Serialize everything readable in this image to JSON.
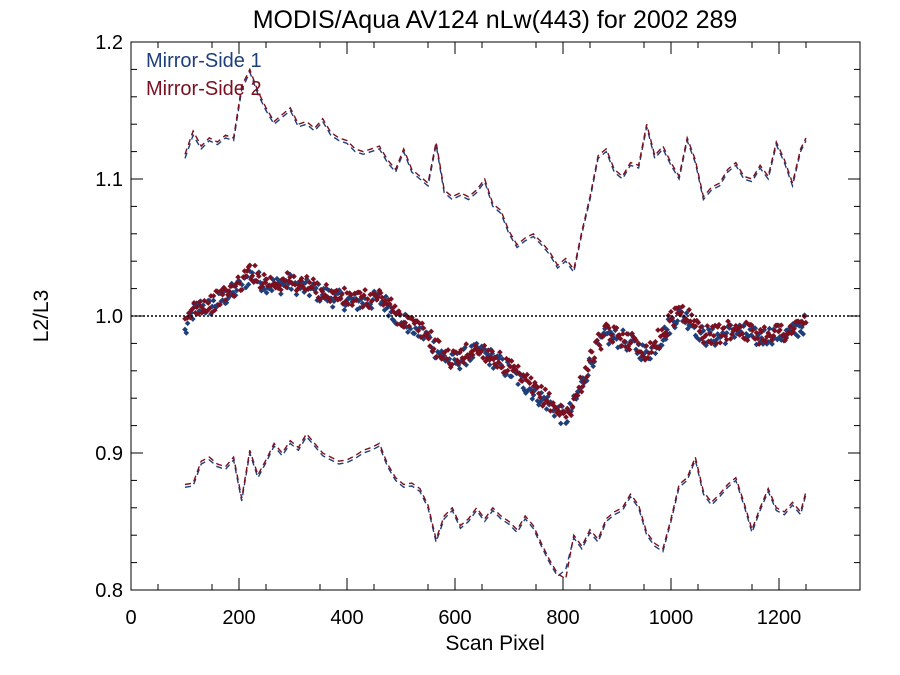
{
  "chart_data": {
    "type": "scatter",
    "title": "MODIS/Aqua AV124 nLw(443) for 2002 289",
    "xlabel": "Scan Pixel",
    "ylabel": "L2/L3",
    "xlim": [
      0,
      1350
    ],
    "ylim": [
      0.8,
      1.2
    ],
    "xticks": [
      0,
      200,
      400,
      600,
      800,
      1000,
      1200
    ],
    "xtick_labels": [
      "0",
      "200",
      "400",
      "600",
      "800",
      "1000",
      "1200"
    ],
    "yticks": [
      0.8,
      0.9,
      1.0,
      1.1,
      1.2
    ],
    "ytick_labels": [
      "0.8",
      "0.9",
      "1.0",
      "1.1",
      "1.2"
    ],
    "reference_line": {
      "y": 1.0,
      "style": "dotted"
    },
    "legend_position": "top-left",
    "colors": {
      "mirror_side_1": "#1f3f7a",
      "mirror_side_2": "#7a1020"
    },
    "series": [
      {
        "name": "Mirror-Side 1",
        "color": "#1f3f7a",
        "x": [
          100,
          115,
          130,
          145,
          160,
          175,
          190,
          205,
          220,
          235,
          250,
          265,
          280,
          295,
          310,
          325,
          340,
          355,
          370,
          385,
          400,
          415,
          430,
          445,
          460,
          475,
          490,
          505,
          520,
          535,
          550,
          565,
          580,
          595,
          610,
          625,
          640,
          655,
          670,
          685,
          700,
          715,
          730,
          745,
          760,
          775,
          790,
          805,
          820,
          835,
          850,
          865,
          880,
          895,
          910,
          925,
          940,
          955,
          970,
          985,
          1000,
          1015,
          1030,
          1045,
          1060,
          1075,
          1090,
          1105,
          1120,
          1135,
          1150,
          1165,
          1180,
          1195,
          1210,
          1225,
          1240,
          1250
        ],
        "mean": [
          0.988,
          1.003,
          1.007,
          1.006,
          1.01,
          1.014,
          1.018,
          1.022,
          1.03,
          1.026,
          1.024,
          1.022,
          1.023,
          1.024,
          1.022,
          1.02,
          1.018,
          1.016,
          1.014,
          1.012,
          1.011,
          1.01,
          1.01,
          1.011,
          1.012,
          1.008,
          1.0,
          0.996,
          0.992,
          0.988,
          0.984,
          0.975,
          0.97,
          0.966,
          0.968,
          0.972,
          0.973,
          0.972,
          0.969,
          0.964,
          0.96,
          0.955,
          0.95,
          0.945,
          0.94,
          0.936,
          0.93,
          0.925,
          0.935,
          0.95,
          0.965,
          0.978,
          0.985,
          0.984,
          0.983,
          0.98,
          0.976,
          0.972,
          0.978,
          0.985,
          0.995,
          1.002,
          0.998,
          0.992,
          0.985,
          0.984,
          0.985,
          0.987,
          0.99,
          0.988,
          0.985,
          0.984,
          0.986,
          0.987,
          0.986,
          0.988,
          0.992,
          0.995
        ],
        "upper": [
          1.115,
          1.132,
          1.122,
          1.128,
          1.125,
          1.13,
          1.128,
          1.165,
          1.178,
          1.162,
          1.15,
          1.14,
          1.145,
          1.15,
          1.138,
          1.14,
          1.135,
          1.142,
          1.132,
          1.128,
          1.126,
          1.12,
          1.118,
          1.12,
          1.122,
          1.112,
          1.105,
          1.12,
          1.105,
          1.1,
          1.095,
          1.125,
          1.09,
          1.085,
          1.088,
          1.085,
          1.09,
          1.098,
          1.08,
          1.075,
          1.06,
          1.05,
          1.055,
          1.058,
          1.052,
          1.045,
          1.035,
          1.04,
          1.032,
          1.06,
          1.085,
          1.115,
          1.12,
          1.105,
          1.1,
          1.11,
          1.108,
          1.138,
          1.115,
          1.122,
          1.11,
          1.1,
          1.128,
          1.112,
          1.085,
          1.092,
          1.095,
          1.105,
          1.11,
          1.1,
          1.098,
          1.108,
          1.1,
          1.125,
          1.112,
          1.095,
          1.12,
          1.128
        ],
        "lower": [
          0.875,
          0.876,
          0.892,
          0.895,
          0.89,
          0.888,
          0.895,
          0.865,
          0.9,
          0.882,
          0.893,
          0.905,
          0.898,
          0.907,
          0.902,
          0.912,
          0.905,
          0.898,
          0.895,
          0.892,
          0.893,
          0.896,
          0.9,
          0.902,
          0.905,
          0.89,
          0.88,
          0.875,
          0.876,
          0.872,
          0.86,
          0.835,
          0.852,
          0.858,
          0.845,
          0.85,
          0.858,
          0.85,
          0.858,
          0.852,
          0.848,
          0.842,
          0.852,
          0.845,
          0.832,
          0.82,
          0.81,
          0.815,
          0.838,
          0.83,
          0.842,
          0.835,
          0.85,
          0.855,
          0.858,
          0.868,
          0.86,
          0.84,
          0.832,
          0.828,
          0.85,
          0.875,
          0.88,
          0.895,
          0.87,
          0.862,
          0.868,
          0.875,
          0.88,
          0.862,
          0.842,
          0.858,
          0.872,
          0.858,
          0.855,
          0.862,
          0.855,
          0.87
        ]
      },
      {
        "name": "Mirror-Side 2",
        "color": "#7a1020",
        "x": [
          100,
          115,
          130,
          145,
          160,
          175,
          190,
          205,
          220,
          235,
          250,
          265,
          280,
          295,
          310,
          325,
          340,
          355,
          370,
          385,
          400,
          415,
          430,
          445,
          460,
          475,
          490,
          505,
          520,
          535,
          550,
          565,
          580,
          595,
          610,
          625,
          640,
          655,
          670,
          685,
          700,
          715,
          730,
          745,
          760,
          775,
          790,
          805,
          820,
          835,
          850,
          865,
          880,
          895,
          910,
          925,
          940,
          955,
          970,
          985,
          1000,
          1015,
          1030,
          1045,
          1060,
          1075,
          1090,
          1105,
          1120,
          1135,
          1150,
          1165,
          1180,
          1195,
          1210,
          1225,
          1240,
          1250
        ],
        "mean": [
          0.992,
          1.006,
          1.009,
          1.008,
          1.012,
          1.016,
          1.02,
          1.024,
          1.034,
          1.028,
          1.026,
          1.024,
          1.025,
          1.025,
          1.024,
          1.022,
          1.02,
          1.018,
          1.016,
          1.014,
          1.013,
          1.012,
          1.012,
          1.013,
          1.014,
          1.01,
          1.002,
          0.998,
          0.994,
          0.99,
          0.986,
          0.977,
          0.972,
          0.968,
          0.97,
          0.974,
          0.975,
          0.974,
          0.971,
          0.966,
          0.962,
          0.957,
          0.952,
          0.947,
          0.942,
          0.938,
          0.932,
          0.927,
          0.937,
          0.952,
          0.967,
          0.98,
          0.987,
          0.986,
          0.985,
          0.982,
          0.978,
          0.974,
          0.98,
          0.987,
          0.997,
          1.006,
          1.0,
          0.994,
          0.987,
          0.986,
          0.987,
          0.989,
          0.992,
          0.99,
          0.987,
          0.986,
          0.988,
          0.989,
          0.988,
          0.99,
          0.994,
          0.998
        ],
        "upper": [
          1.118,
          1.135,
          1.124,
          1.13,
          1.127,
          1.132,
          1.13,
          1.168,
          1.18,
          1.164,
          1.152,
          1.142,
          1.147,
          1.152,
          1.14,
          1.142,
          1.137,
          1.144,
          1.134,
          1.13,
          1.128,
          1.122,
          1.12,
          1.122,
          1.124,
          1.114,
          1.107,
          1.122,
          1.107,
          1.102,
          1.097,
          1.127,
          1.092,
          1.087,
          1.09,
          1.087,
          1.092,
          1.1,
          1.082,
          1.077,
          1.062,
          1.052,
          1.057,
          1.06,
          1.054,
          1.047,
          1.037,
          1.042,
          1.034,
          1.062,
          1.087,
          1.117,
          1.122,
          1.107,
          1.102,
          1.112,
          1.11,
          1.14,
          1.117,
          1.124,
          1.112,
          1.102,
          1.13,
          1.114,
          1.087,
          1.094,
          1.097,
          1.107,
          1.112,
          1.102,
          1.1,
          1.11,
          1.102,
          1.127,
          1.114,
          1.097,
          1.122,
          1.13
        ],
        "lower": [
          0.877,
          0.878,
          0.894,
          0.897,
          0.892,
          0.89,
          0.897,
          0.867,
          0.902,
          0.884,
          0.895,
          0.907,
          0.9,
          0.909,
          0.904,
          0.914,
          0.907,
          0.9,
          0.897,
          0.894,
          0.895,
          0.898,
          0.902,
          0.904,
          0.907,
          0.892,
          0.882,
          0.877,
          0.878,
          0.874,
          0.862,
          0.837,
          0.854,
          0.86,
          0.847,
          0.852,
          0.86,
          0.852,
          0.86,
          0.854,
          0.85,
          0.844,
          0.854,
          0.847,
          0.834,
          0.822,
          0.812,
          0.808,
          0.84,
          0.832,
          0.844,
          0.837,
          0.852,
          0.857,
          0.86,
          0.87,
          0.862,
          0.842,
          0.834,
          0.83,
          0.852,
          0.877,
          0.882,
          0.897,
          0.872,
          0.864,
          0.87,
          0.877,
          0.882,
          0.864,
          0.844,
          0.86,
          0.874,
          0.86,
          0.857,
          0.864,
          0.857,
          0.872
        ]
      }
    ]
  }
}
